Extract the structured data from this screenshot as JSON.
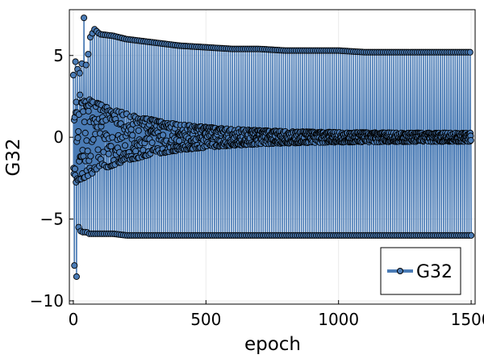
{
  "chart_data": {
    "type": "line",
    "title": "",
    "xlabel": "epoch",
    "ylabel": "G32",
    "xlim": [
      -15,
      1515
    ],
    "ylim": [
      -10.2,
      7.8
    ],
    "x_ticks": [
      0,
      500,
      1000,
      1500
    ],
    "x_tick_labels": [
      "0",
      "500",
      "1000",
      "1500"
    ],
    "y_ticks": [
      -10,
      -5,
      0,
      5
    ],
    "y_tick_labels": [
      "−10",
      "−5",
      "0",
      "5"
    ],
    "grid": true,
    "legend_position": "bottom-right",
    "line_color": "#4a7bb5",
    "marker_fill": "#4a7bb5",
    "marker_edge": "#000000",
    "series": [
      {
        "name": "G32",
        "envelope": {
          "x": [
            0,
            5,
            10,
            15,
            20,
            30,
            40,
            50,
            60,
            80,
            100,
            150,
            200,
            300,
            400,
            500,
            600,
            700,
            800,
            900,
            1000,
            1100,
            1200,
            1300,
            1400,
            1500
          ],
          "upper": [
            3.8,
            4.8,
            4.5,
            4.2,
            4.0,
            3.8,
            7.3,
            3.7,
            6.0,
            6.6,
            6.3,
            6.2,
            6.0,
            5.8,
            5.6,
            5.5,
            5.4,
            5.4,
            5.3,
            5.3,
            5.3,
            5.2,
            5.2,
            5.2,
            5.2,
            5.2
          ],
          "lower": [
            -6.4,
            -8.2,
            -9.8,
            -6.6,
            -5.5,
            -5.8,
            -5.8,
            -5.8,
            -5.9,
            -5.9,
            -5.9,
            -5.9,
            -6.0,
            -6.0,
            -6.0,
            -6.0,
            -6.0,
            -6.0,
            -6.0,
            -6.0,
            -6.0,
            -6.0,
            -6.0,
            -6.0,
            -6.0,
            -6.0
          ]
        }
      }
    ]
  }
}
